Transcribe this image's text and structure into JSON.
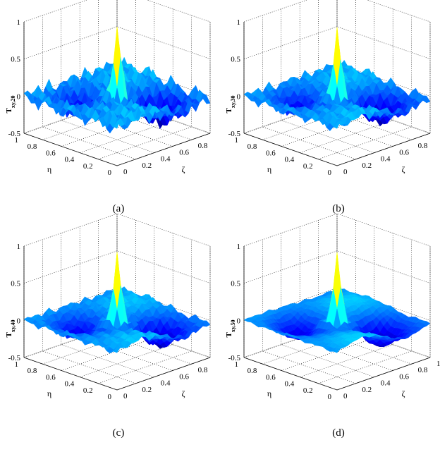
{
  "chart_data": [
    {
      "type": "surface",
      "panel_label": "(a)",
      "zlabel_main": "T",
      "zlabel_sub": "xy,20",
      "xlabel": "ζ",
      "ylabel": "η",
      "xlim": [
        0,
        1
      ],
      "ylim": [
        0,
        1
      ],
      "zlim": [
        -0.5,
        1
      ],
      "x_ticks": [
        "0",
        "0.2",
        "0.4",
        "0.6",
        "0.8"
      ],
      "y_ticks": [
        "0",
        "0.2",
        "0.4",
        "0.6",
        "0.8",
        "1"
      ],
      "z_ticks": [
        "-0.5",
        "0",
        "0.5",
        "1"
      ],
      "peak": {
        "zeta": 0.5,
        "eta": 0.5,
        "value": 0.95
      },
      "ripple_level": 0.12,
      "colormap": [
        "#00008f",
        "#0000ff",
        "#0080ff",
        "#00ffff",
        "#80ff80",
        "#ffff00",
        "#ff8000",
        "#ff0000",
        "#800000"
      ],
      "grid": true
    },
    {
      "type": "surface",
      "panel_label": "(b)",
      "zlabel_main": "T",
      "zlabel_sub": "xy,30",
      "xlabel": "ζ",
      "ylabel": "η",
      "xlim": [
        0,
        1
      ],
      "ylim": [
        0,
        1
      ],
      "zlim": [
        -0.5,
        1
      ],
      "x_ticks": [
        "0",
        "0.2",
        "0.4",
        "0.6",
        "0.8"
      ],
      "y_ticks": [
        "0",
        "0.2",
        "0.4",
        "0.6",
        "0.8",
        "1"
      ],
      "z_ticks": [
        "-0.5",
        "0",
        "0.5",
        "1"
      ],
      "peak": {
        "zeta": 0.5,
        "eta": 0.5,
        "value": 0.95
      },
      "ripple_level": 0.08,
      "colormap": [
        "#00008f",
        "#0000ff",
        "#0080ff",
        "#00ffff",
        "#80ff80",
        "#ffff00",
        "#ff8000",
        "#ff0000",
        "#800000"
      ],
      "grid": true
    },
    {
      "type": "surface",
      "panel_label": "(c)",
      "zlabel_main": "T",
      "zlabel_sub": "xy,40",
      "xlabel": "ζ",
      "ylabel": "η",
      "xlim": [
        0,
        1
      ],
      "ylim": [
        0,
        1
      ],
      "zlim": [
        -0.5,
        1
      ],
      "x_ticks": [
        "0",
        "0.2",
        "0.4",
        "0.6",
        "0.8"
      ],
      "y_ticks": [
        "0",
        "0.2",
        "0.4",
        "0.6",
        "0.8",
        "1"
      ],
      "z_ticks": [
        "-0.5",
        "0",
        "0.5",
        "1"
      ],
      "peak": {
        "zeta": 0.5,
        "eta": 0.5,
        "value": 0.95
      },
      "ripple_level": 0.05,
      "colormap": [
        "#00008f",
        "#0000ff",
        "#0080ff",
        "#00ffff",
        "#80ff80",
        "#ffff00",
        "#ff8000",
        "#ff0000",
        "#800000"
      ],
      "grid": true
    },
    {
      "type": "surface",
      "panel_label": "(d)",
      "zlabel_main": "T",
      "zlabel_sub": "xy,50",
      "xlabel": "ζ",
      "ylabel": "η",
      "xlim": [
        0,
        1
      ],
      "ylim": [
        0,
        1
      ],
      "zlim": [
        -0.5,
        1
      ],
      "x_ticks": [
        "0",
        "0.2",
        "0.4",
        "0.6",
        "0.8",
        "1"
      ],
      "y_ticks": [
        "0",
        "0.2",
        "0.4",
        "0.6",
        "0.8",
        "1"
      ],
      "z_ticks": [
        "-0.5",
        "0",
        "0.5",
        "1"
      ],
      "peak": {
        "zeta": 0.5,
        "eta": 0.5,
        "value": 0.95
      },
      "ripple_level": 0.02,
      "colormap": [
        "#00008f",
        "#0000ff",
        "#0080ff",
        "#00ffff",
        "#80ff80",
        "#ffff00",
        "#ff8000",
        "#ff0000",
        "#800000"
      ],
      "grid": true
    }
  ]
}
